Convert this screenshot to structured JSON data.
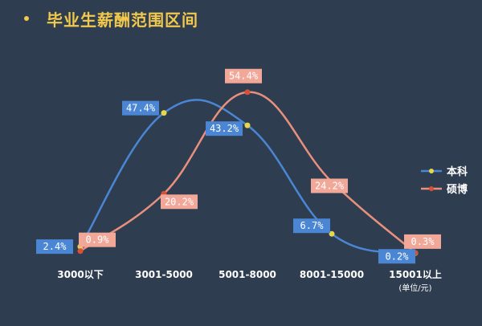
{
  "chart_data": {
    "type": "line",
    "title": "毕业生薪酬范围区间",
    "categories": [
      "3000以下",
      "3001-5000",
      "5001-8000",
      "8001-15000",
      "15001以上"
    ],
    "unit_note": "(单位/元)",
    "ylim": [
      0,
      60
    ],
    "grid": false,
    "legend_position": "right",
    "series": [
      {
        "name": "本科",
        "values": [
          2.4,
          47.4,
          43.2,
          6.7,
          0.2
        ],
        "labels": [
          "2.4%",
          "47.4%",
          "43.2%",
          "6.7%",
          "0.2%"
        ],
        "color": "#4a86d4",
        "marker_color": "#e6d84a",
        "label_bg": "#4a86d4",
        "label_fg": "#ffffff"
      },
      {
        "name": "硕博",
        "values": [
          0.9,
          20.2,
          54.4,
          24.2,
          0.3
        ],
        "labels": [
          "0.9%",
          "20.2%",
          "54.4%",
          "24.2%",
          "0.3%"
        ],
        "color": "#e8907e",
        "marker_color": "#d9503a",
        "label_bg": "#f2a899",
        "label_fg": "#ffffff"
      }
    ]
  }
}
